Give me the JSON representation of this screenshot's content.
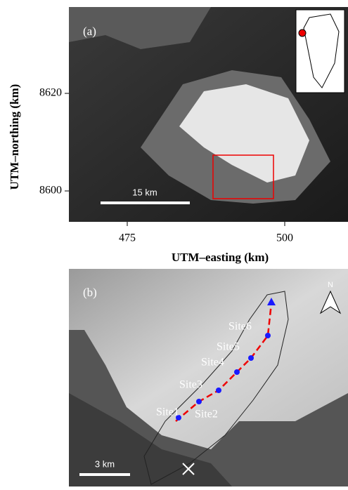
{
  "panel_a": {
    "label": "(a)",
    "y_axis_label": "UTM–northing (km)",
    "x_axis_label": "UTM–easting (km)",
    "y_tick_labels": [
      "8620",
      "8600"
    ],
    "x_tick_labels": [
      "475",
      "500"
    ],
    "scale_bar": "15 km"
  },
  "panel_b": {
    "label": "(b)",
    "north": "N",
    "scale_bar": "3 km",
    "sites": [
      "Site1",
      "Site2",
      "Site3",
      "Site4",
      "Site5",
      "Site6"
    ]
  }
}
